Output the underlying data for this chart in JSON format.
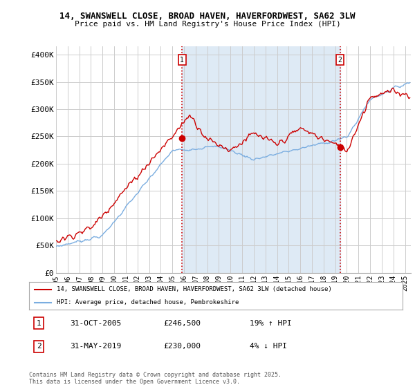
{
  "title_line1": "14, SWANSWELL CLOSE, BROAD HAVEN, HAVERFORDWEST, SA62 3LW",
  "title_line2": "Price paid vs. HM Land Registry's House Price Index (HPI)",
  "ylabel_ticks": [
    "£0",
    "£50K",
    "£100K",
    "£150K",
    "£200K",
    "£250K",
    "£300K",
    "£350K",
    "£400K"
  ],
  "ytick_values": [
    0,
    50000,
    100000,
    150000,
    200000,
    250000,
    300000,
    350000,
    400000
  ],
  "ylim": [
    0,
    415000
  ],
  "xlim_start": 1995.0,
  "xlim_end": 2025.5,
  "line_color_red": "#cc0000",
  "line_color_blue": "#7aade0",
  "shade_color": "#deeaf5",
  "vline_color": "#cc0000",
  "grid_color": "#cccccc",
  "background_color": "#ffffff",
  "sale1_x": 2005.83,
  "sale1_y": 246500,
  "sale1_label": "1",
  "sale2_x": 2019.42,
  "sale2_y": 230000,
  "sale2_label": "2",
  "legend_red_label": "14, SWANSWELL CLOSE, BROAD HAVEN, HAVERFORDWEST, SA62 3LW (detached house)",
  "legend_blue_label": "HPI: Average price, detached house, Pembrokeshire",
  "annotation1_date": "31-OCT-2005",
  "annotation1_price": "£246,500",
  "annotation1_hpi": "19% ↑ HPI",
  "annotation2_date": "31-MAY-2019",
  "annotation2_price": "£230,000",
  "annotation2_hpi": "4% ↓ HPI",
  "footer": "Contains HM Land Registry data © Crown copyright and database right 2025.\nThis data is licensed under the Open Government Licence v3.0.",
  "xtick_years": [
    1995,
    1996,
    1997,
    1998,
    1999,
    2000,
    2001,
    2002,
    2003,
    2004,
    2005,
    2006,
    2007,
    2008,
    2009,
    2010,
    2011,
    2012,
    2013,
    2014,
    2015,
    2016,
    2017,
    2018,
    2019,
    2020,
    2021,
    2022,
    2023,
    2024,
    2025
  ]
}
